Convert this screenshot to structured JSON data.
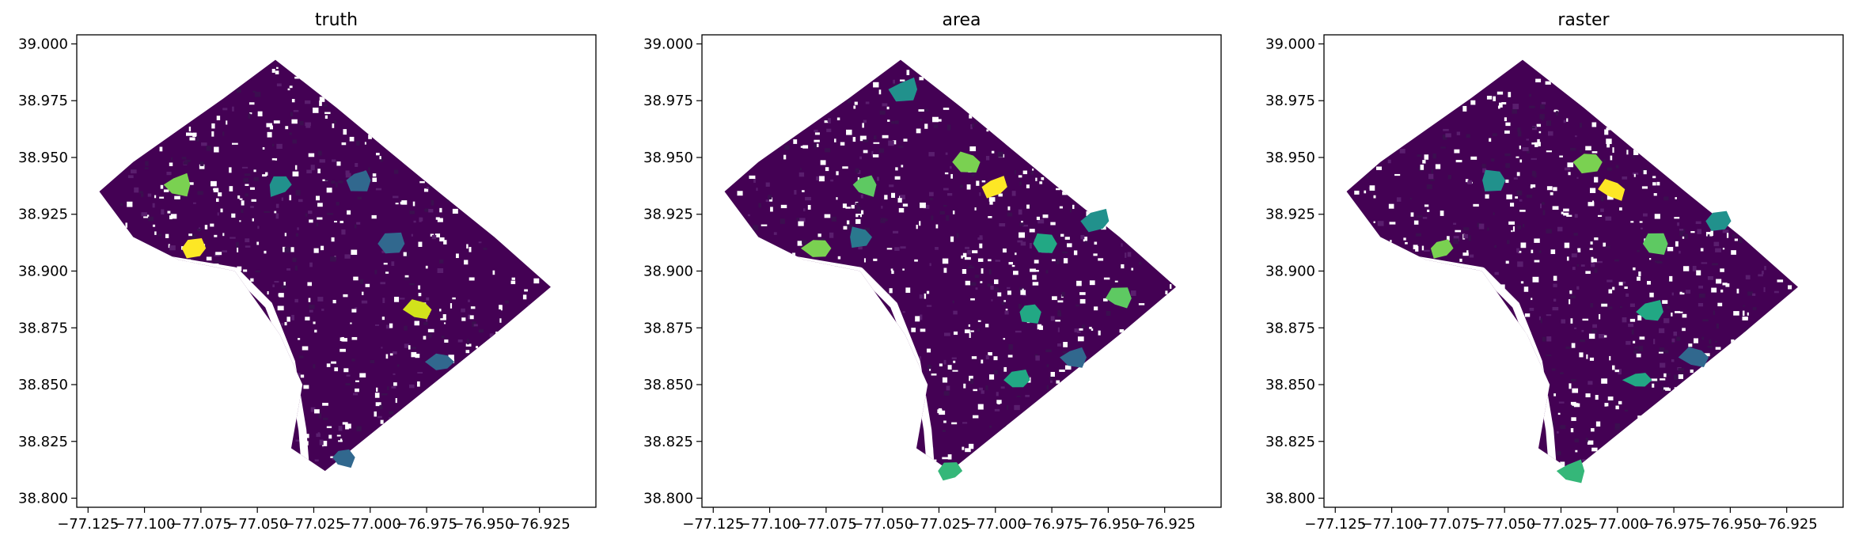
{
  "chart_data": [
    {
      "type": "map",
      "title": "truth",
      "xlim": [
        -77.13,
        -76.9
      ],
      "ylim": [
        38.796,
        39.004
      ],
      "xticks": [
        -77.125,
        -77.1,
        -77.075,
        -77.05,
        -77.025,
        -77.0,
        -76.975,
        -76.95,
        -76.925
      ],
      "xtick_labels": [
        "−77.125",
        "−77.100",
        "−77.075",
        "−77.050",
        "−77.025",
        "−77.000",
        "−76.975",
        "−76.950",
        "−76.925"
      ],
      "yticks": [
        38.8,
        38.825,
        38.85,
        38.875,
        38.9,
        38.925,
        38.95,
        38.975,
        39.0
      ],
      "ytick_labels": [
        "38.800",
        "38.825",
        "38.850",
        "38.875",
        "38.900",
        "38.925",
        "38.950",
        "38.975",
        "39.000"
      ],
      "colormap": "viridis",
      "highlights": [
        {
          "lon": -77.078,
          "lat": 38.91,
          "color": "#fde725"
        },
        {
          "lon": -77.085,
          "lat": 38.938,
          "color": "#7ad151"
        },
        {
          "lon": -76.978,
          "lat": 38.883,
          "color": "#d2e21b"
        },
        {
          "lon": -77.04,
          "lat": 38.938,
          "color": "#21918c"
        },
        {
          "lon": -77.005,
          "lat": 38.94,
          "color": "#31688e"
        },
        {
          "lon": -76.99,
          "lat": 38.912,
          "color": "#31688e"
        },
        {
          "lon": -76.968,
          "lat": 38.86,
          "color": "#31688e"
        },
        {
          "lon": -77.012,
          "lat": 38.818,
          "color": "#31688e"
        }
      ]
    },
    {
      "type": "map",
      "title": "area",
      "xlim": [
        -77.13,
        -76.9
      ],
      "ylim": [
        38.796,
        39.004
      ],
      "xticks": [
        -77.125,
        -77.1,
        -77.075,
        -77.05,
        -77.025,
        -77.0,
        -76.975,
        -76.95,
        -76.925
      ],
      "xtick_labels": [
        "−77.125",
        "−77.100",
        "−77.075",
        "−77.050",
        "−77.025",
        "−77.000",
        "−76.975",
        "−76.950",
        "−76.925"
      ],
      "yticks": [
        38.8,
        38.825,
        38.85,
        38.875,
        38.9,
        38.925,
        38.95,
        38.975,
        39.0
      ],
      "ytick_labels": [
        "38.800",
        "38.825",
        "38.850",
        "38.875",
        "38.900",
        "38.925",
        "38.950",
        "38.975",
        "39.000"
      ],
      "colormap": "viridis",
      "highlights": [
        {
          "lon": -77.0,
          "lat": 38.937,
          "color": "#fde725"
        },
        {
          "lon": -77.012,
          "lat": 38.948,
          "color": "#7ad151"
        },
        {
          "lon": -77.078,
          "lat": 38.91,
          "color": "#7ad151"
        },
        {
          "lon": -77.058,
          "lat": 38.938,
          "color": "#5ec962"
        },
        {
          "lon": -76.945,
          "lat": 38.888,
          "color": "#5ec962"
        },
        {
          "lon": -76.955,
          "lat": 38.922,
          "color": "#21918c"
        },
        {
          "lon": -76.985,
          "lat": 38.882,
          "color": "#22a884"
        },
        {
          "lon": -76.978,
          "lat": 38.912,
          "color": "#22a884"
        },
        {
          "lon": -76.99,
          "lat": 38.852,
          "color": "#22a884"
        },
        {
          "lon": -77.04,
          "lat": 38.98,
          "color": "#21918c"
        },
        {
          "lon": -77.06,
          "lat": 38.915,
          "color": "#2a788e"
        },
        {
          "lon": -77.02,
          "lat": 38.812,
          "color": "#35b779"
        },
        {
          "lon": -76.965,
          "lat": 38.862,
          "color": "#31688e"
        }
      ]
    },
    {
      "type": "map",
      "title": "raster",
      "xlim": [
        -77.13,
        -76.9
      ],
      "ylim": [
        38.796,
        39.004
      ],
      "xticks": [
        -77.125,
        -77.1,
        -77.075,
        -77.05,
        -77.025,
        -77.0,
        -76.975,
        -76.95,
        -76.925
      ],
      "xtick_labels": [
        "−77.125",
        "−77.100",
        "−77.075",
        "−77.050",
        "−77.025",
        "−77.000",
        "−76.975",
        "−76.950",
        "−76.925"
      ],
      "yticks": [
        38.8,
        38.825,
        38.85,
        38.875,
        38.9,
        38.925,
        38.95,
        38.975,
        39.0
      ],
      "ytick_labels": [
        "38.800",
        "38.825",
        "38.850",
        "38.875",
        "38.900",
        "38.925",
        "38.950",
        "38.975",
        "39.000"
      ],
      "colormap": "viridis",
      "highlights": [
        {
          "lon": -77.002,
          "lat": 38.936,
          "color": "#fde725"
        },
        {
          "lon": -77.012,
          "lat": 38.948,
          "color": "#7ad151"
        },
        {
          "lon": -77.078,
          "lat": 38.91,
          "color": "#7ad151"
        },
        {
          "lon": -76.983,
          "lat": 38.912,
          "color": "#5ec962"
        },
        {
          "lon": -76.985,
          "lat": 38.882,
          "color": "#22a884"
        },
        {
          "lon": -76.99,
          "lat": 38.852,
          "color": "#22a884"
        },
        {
          "lon": -77.055,
          "lat": 38.94,
          "color": "#21918c"
        },
        {
          "lon": -76.955,
          "lat": 38.922,
          "color": "#21918c"
        },
        {
          "lon": -77.02,
          "lat": 38.812,
          "color": "#35b779"
        },
        {
          "lon": -76.965,
          "lat": 38.862,
          "color": "#31688e"
        }
      ]
    }
  ]
}
